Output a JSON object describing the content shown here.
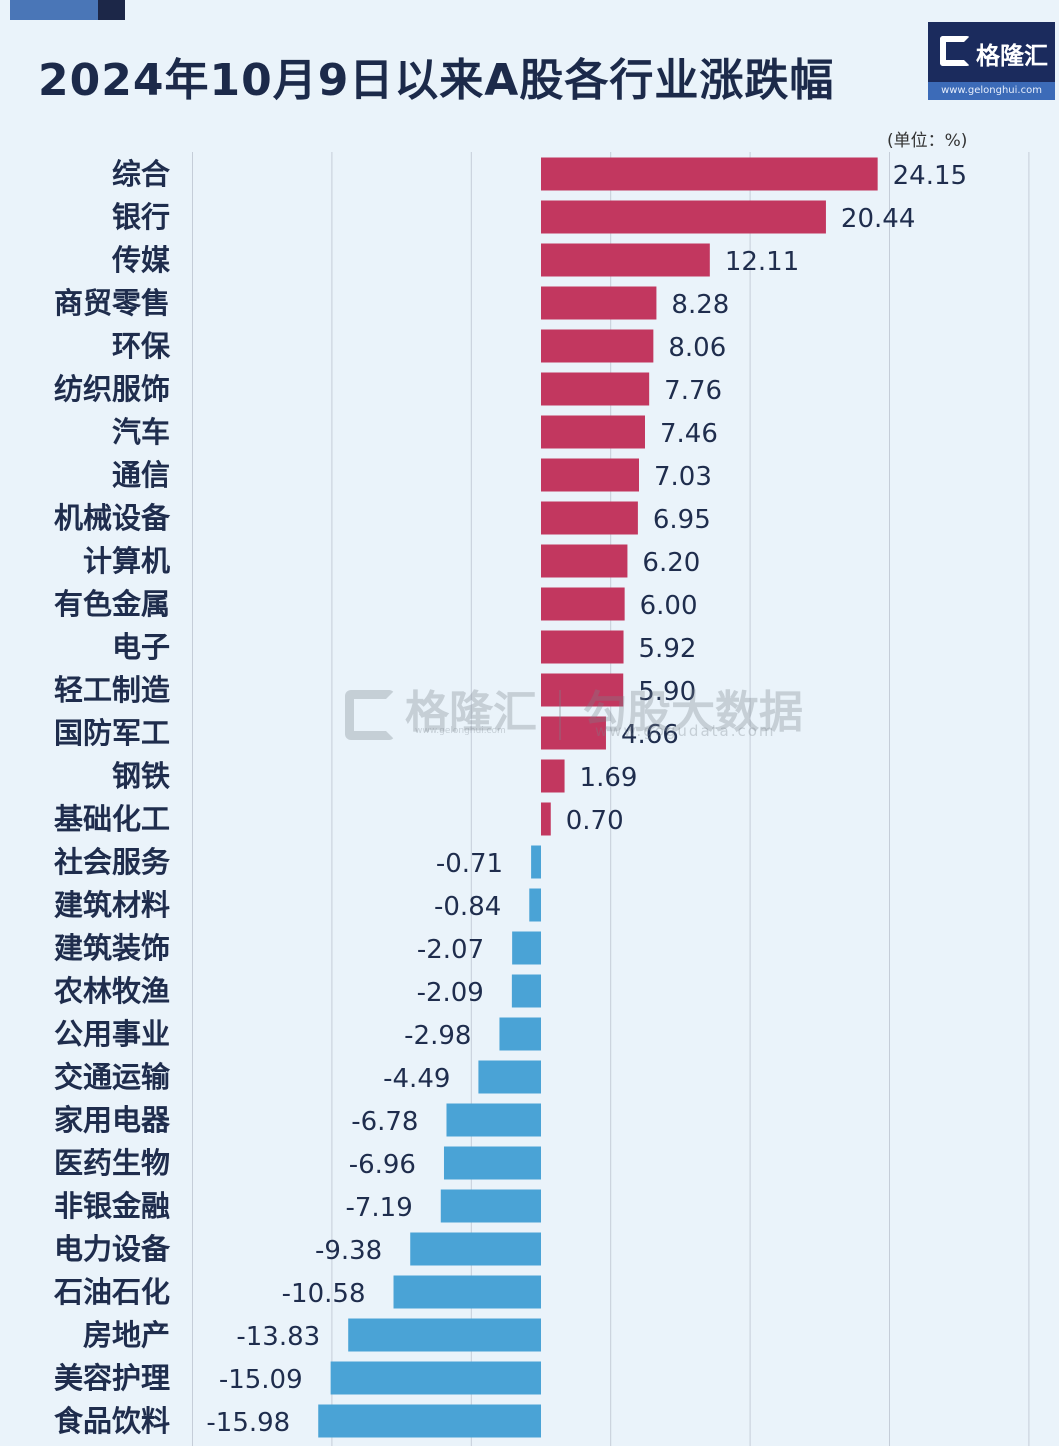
{
  "title": "2024年10月9日以来A股各行业涨跌幅",
  "unit": "(单位：%)",
  "logo": {
    "brand": "格隆汇",
    "url": "www.gelonghui.com"
  },
  "watermark": {
    "brand": "格隆汇",
    "url": "www.gelonghui.com",
    "partner": "勾股大数据",
    "partner_url": "www.gogudata.com"
  },
  "colors": {
    "positive": "#c2375f",
    "negative": "#4aa3d6",
    "grid": "#c5cdd8"
  },
  "chart_data": {
    "type": "bar",
    "orientation": "horizontal",
    "title": "2024年10月9日以来A股各行业涨跌幅",
    "unit": "%",
    "grid": true,
    "xlim": [
      -25,
      35
    ],
    "categories": [
      "综合",
      "银行",
      "传媒",
      "商贸零售",
      "环保",
      "纺织服饰",
      "汽车",
      "通信",
      "机械设备",
      "计算机",
      "有色金属",
      "电子",
      "轻工制造",
      "国防军工",
      "钢铁",
      "基础化工",
      "社会服务",
      "建筑材料",
      "建筑装饰",
      "农林牧渔",
      "公用事业",
      "交通运输",
      "家用电器",
      "医药生物",
      "非银金融",
      "电力设备",
      "石油石化",
      "房地产",
      "美容护理",
      "食品饮料"
    ],
    "values": [
      24.15,
      20.44,
      12.11,
      8.28,
      8.06,
      7.76,
      7.46,
      7.03,
      6.95,
      6.2,
      6.0,
      5.92,
      5.9,
      4.66,
      1.69,
      0.7,
      -0.71,
      -0.84,
      -2.07,
      -2.09,
      -2.98,
      -4.49,
      -6.78,
      -6.96,
      -7.19,
      -9.38,
      -10.58,
      -13.83,
      -15.09,
      -15.98
    ],
    "value_labels": [
      "24.15",
      "20.44",
      "12.11",
      "8.28",
      "8.06",
      "7.76",
      "7.46",
      "7.03",
      "6.95",
      "6.20",
      "6.00",
      "5.92",
      "5.90",
      "4.66",
      "1.69",
      "0.70",
      "-0.71",
      "-0.84",
      "-2.07",
      "-2.09",
      "-2.98",
      "-4.49",
      "-6.78",
      "-6.96",
      "-7.19",
      "-9.38",
      "-10.58",
      "-13.83",
      "-15.09",
      "-15.98"
    ]
  }
}
